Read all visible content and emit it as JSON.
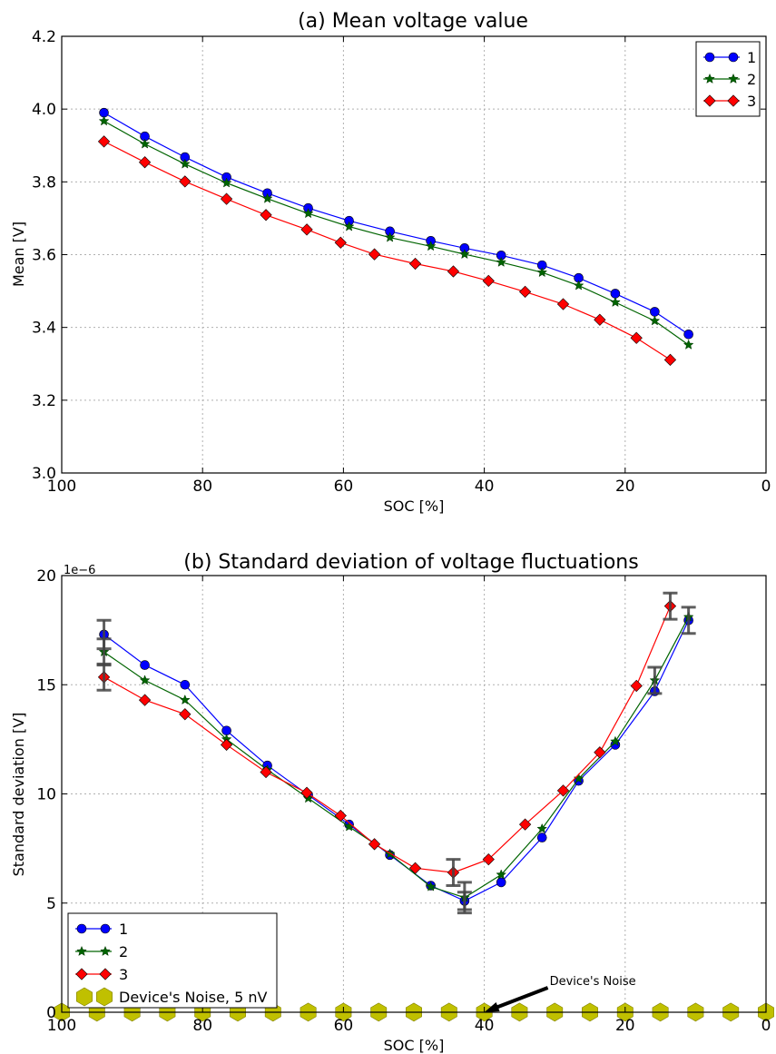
{
  "chart_data": [
    {
      "type": "line",
      "title": "(a) Mean voltage value",
      "xlabel": "SOC [%]",
      "ylabel": "Mean [V]",
      "xlim": [
        100,
        0
      ],
      "ylim": [
        3.0,
        4.2
      ],
      "xticks": [
        "100",
        "80",
        "60",
        "40",
        "20",
        "0"
      ],
      "yticks": [
        "3.0",
        "3.2",
        "3.4",
        "3.6",
        "3.8",
        "4.0",
        "4.2"
      ],
      "grid": true,
      "legend_position": "top-right",
      "series": [
        {
          "name": "1",
          "color": "#0000ff",
          "marker": "circle",
          "x": [
            94,
            88.2,
            82.5,
            76.6,
            70.8,
            65,
            59.2,
            53.4,
            47.6,
            42.8,
            37.6,
            31.8,
            26.6,
            21.4,
            15.8,
            11
          ],
          "y": [
            3.99,
            3.925,
            3.868,
            3.813,
            3.769,
            3.728,
            3.693,
            3.664,
            3.638,
            3.618,
            3.598,
            3.571,
            3.536,
            3.493,
            3.443,
            3.381
          ]
        },
        {
          "name": "2",
          "color": "#006400",
          "marker": "star",
          "x": [
            94,
            88.2,
            82.5,
            76.6,
            70.8,
            65,
            59.2,
            53.4,
            47.6,
            42.8,
            37.6,
            31.8,
            26.6,
            21.4,
            15.8,
            11
          ],
          "y": [
            3.967,
            3.904,
            3.849,
            3.797,
            3.754,
            3.713,
            3.677,
            3.647,
            3.623,
            3.601,
            3.579,
            3.551,
            3.515,
            3.469,
            3.418,
            3.352
          ]
        },
        {
          "name": "3",
          "color": "#ff0000",
          "marker": "diamond",
          "x": [
            94,
            88.2,
            82.5,
            76.6,
            71,
            65.2,
            60.4,
            55.6,
            49.8,
            44.4,
            39.4,
            34.2,
            28.8,
            23.6,
            18.4,
            13.6
          ],
          "y": [
            3.911,
            3.854,
            3.801,
            3.753,
            3.709,
            3.669,
            3.633,
            3.601,
            3.575,
            3.554,
            3.528,
            3.498,
            3.464,
            3.421,
            3.371,
            3.311
          ]
        }
      ]
    },
    {
      "type": "line",
      "title": "(b) Standard deviation of voltage fluctuations",
      "xlabel": "SOC [%]",
      "ylabel": "Standard deviation [V]",
      "scale_label": "1e−6",
      "xlim": [
        100,
        0
      ],
      "ylim": [
        0,
        20
      ],
      "xticks": [
        "100",
        "80",
        "60",
        "40",
        "20",
        "0"
      ],
      "yticks": [
        "0",
        "5",
        "10",
        "15",
        "20"
      ],
      "grid": true,
      "legend_position": "bottom-left",
      "series": [
        {
          "name": "1",
          "color": "#0000ff",
          "marker": "circle",
          "x": [
            94,
            88.2,
            82.5,
            76.6,
            70.8,
            65,
            59.2,
            53.4,
            47.6,
            42.8,
            37.6,
            31.8,
            26.6,
            21.4,
            15.8,
            11
          ],
          "y": [
            17.3,
            15.9,
            15.0,
            12.9,
            11.3,
            9.95,
            8.6,
            7.2,
            5.8,
            5.1,
            5.95,
            8.0,
            10.6,
            12.25,
            14.7,
            17.95
          ]
        },
        {
          "name": "2",
          "color": "#006400",
          "marker": "star",
          "x": [
            94,
            88.2,
            82.5,
            76.6,
            70.8,
            65,
            59.2,
            53.4,
            47.6,
            42.8,
            37.6,
            31.8,
            26.6,
            21.4,
            15.8,
            11
          ],
          "y": [
            16.5,
            15.2,
            14.3,
            12.5,
            11.1,
            9.8,
            8.5,
            7.25,
            5.75,
            5.25,
            6.3,
            8.4,
            10.7,
            12.4,
            15.2,
            18.1
          ]
        },
        {
          "name": "3",
          "color": "#ff0000",
          "marker": "diamond",
          "x": [
            94,
            88.2,
            82.5,
            76.6,
            71,
            65.2,
            60.4,
            55.6,
            49.8,
            44.4,
            39.4,
            34.2,
            28.8,
            23.6,
            18.4,
            13.6
          ],
          "y": [
            15.35,
            14.3,
            13.65,
            12.25,
            11.0,
            10.05,
            9.0,
            7.7,
            6.6,
            6.4,
            7.0,
            8.6,
            10.15,
            11.9,
            14.95,
            18.6
          ]
        },
        {
          "name": "Device's Noise, 5 nV",
          "color": "#c0c000",
          "marker": "hexagon",
          "x": [
            100,
            95,
            90,
            85,
            80,
            75,
            70,
            65,
            60,
            55,
            50,
            45,
            40,
            35,
            30,
            25,
            20,
            15,
            10,
            5,
            0
          ],
          "y": [
            0.005,
            0.005,
            0.005,
            0.005,
            0.005,
            0.005,
            0.005,
            0.005,
            0.005,
            0.005,
            0.005,
            0.005,
            0.005,
            0.005,
            0.005,
            0.005,
            0.005,
            0.005,
            0.005,
            0.005,
            0.005
          ]
        }
      ],
      "error_bars": [
        {
          "x": 94,
          "y": 17.3,
          "low": 16.65,
          "high": 17.95
        },
        {
          "x": 94,
          "y": 16.5,
          "low": 15.9,
          "high": 17.1
        },
        {
          "x": 94,
          "y": 15.35,
          "low": 14.75,
          "high": 15.95
        },
        {
          "x": 44.4,
          "y": 6.4,
          "low": 5.8,
          "high": 7.0
        },
        {
          "x": 42.8,
          "y": 5.25,
          "low": 4.55,
          "high": 5.95
        },
        {
          "x": 42.8,
          "y": 5.1,
          "low": 4.7,
          "high": 5.5
        },
        {
          "x": 15.8,
          "y": 15.2,
          "low": 14.6,
          "high": 15.8
        },
        {
          "x": 13.6,
          "y": 18.6,
          "low": 18.0,
          "high": 19.2
        },
        {
          "x": 11,
          "y": 17.95,
          "low": 17.35,
          "high": 18.55
        }
      ],
      "annotation": {
        "text": "Device's Noise",
        "x": 40,
        "y": 0
      }
    }
  ]
}
